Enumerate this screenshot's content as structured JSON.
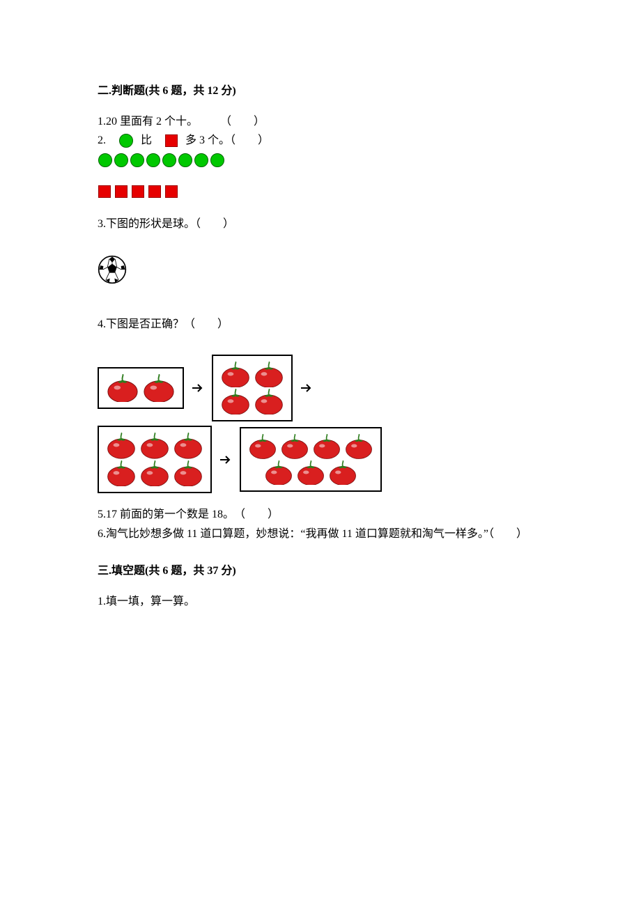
{
  "section2": {
    "title": "二.判断题(共 6 题，共 12 分)",
    "q1": "1.20 里面有 2 个十。　　　（　　）",
    "q2_prefix": "2.　",
    "q2_mid": "比　",
    "q2_suffix": "多 3 个。（　　）",
    "green_circles": {
      "count": 8,
      "color": "#00c800",
      "border": "#006600"
    },
    "red_squares": {
      "count": 5,
      "color": "#e60000",
      "border": "#990000"
    },
    "q3": "3.下图的形状是球。（　　）",
    "q4": "4.下图是否正确？（　　）",
    "tomato": {
      "color": "#d91f1f",
      "stem_color": "#2e7d1e",
      "box_border": "#000000",
      "arrow_color": "#000000",
      "boxes": [
        {
          "rows": [
            2
          ]
        },
        {
          "rows": [
            2,
            2
          ]
        },
        {
          "rows": [
            3,
            3
          ]
        },
        {
          "rows": [
            4,
            3
          ]
        }
      ]
    },
    "q5": "5.17 前面的第一个数是 18。　（　　）",
    "q6": "6.淘气比妙想多做 11 道口算题，妙想说：“我再做 11 道口算题就和淘气一样多。”（　　）"
  },
  "section3": {
    "title": "三.填空题(共 6 题，共 37 分)",
    "q1": "1.填一填，算一算。"
  },
  "soccer": {
    "bg": "#ffffff",
    "stroke": "#000000"
  }
}
